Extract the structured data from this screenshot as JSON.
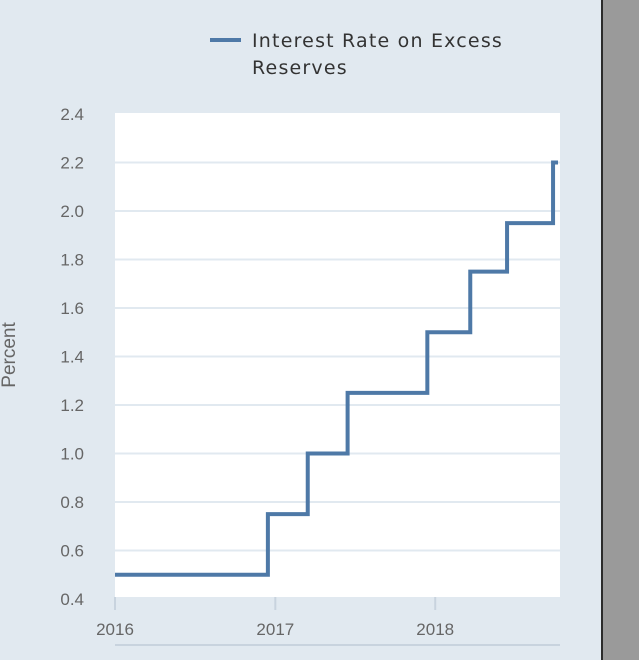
{
  "colors": {
    "background": "#e1e9f0",
    "plot_background": "#ffffff",
    "line": "#4e79a7",
    "grid": "#e1e9f0"
  },
  "chart_data": {
    "type": "line",
    "line_style": "step",
    "xlabel": "",
    "ylabel": "Percent",
    "ylim": [
      0.4,
      2.4
    ],
    "yticks": [
      "0.4",
      "0.6",
      "0.8",
      "1.0",
      "1.2",
      "1.4",
      "1.6",
      "1.8",
      "2.0",
      "2.2",
      "2.4"
    ],
    "xticks": [
      "2016",
      "2017",
      "2018"
    ],
    "xlim": [
      "2016-01-01",
      "2018-10-01"
    ],
    "grid": true,
    "legend_position": "top",
    "series": [
      {
        "name": "Interest Rate on Excess Reserves",
        "x": [
          "2016-01-01",
          "2016-12-15",
          "2017-03-16",
          "2017-06-15",
          "2017-12-14",
          "2018-03-22",
          "2018-06-14",
          "2018-09-27"
        ],
        "values": [
          0.5,
          0.75,
          1.0,
          1.25,
          1.5,
          1.75,
          1.95,
          2.2
        ]
      }
    ]
  }
}
